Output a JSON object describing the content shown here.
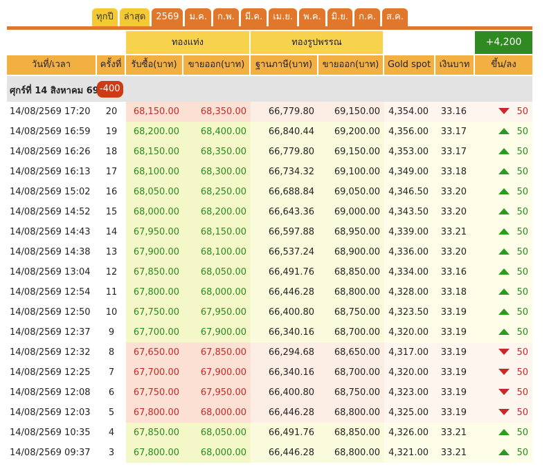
{
  "tabs": [
    {
      "label": "ทุกปี",
      "style": "yellow"
    },
    {
      "label": "ล่าสุด",
      "style": "yellow"
    },
    {
      "label": "2569",
      "style": "orange"
    },
    {
      "label": "ม.ค.",
      "style": "orange"
    },
    {
      "label": "ก.พ.",
      "style": "orange"
    },
    {
      "label": "มี.ค.",
      "style": "orange"
    },
    {
      "label": "เม.ย.",
      "style": "orange"
    },
    {
      "label": "พ.ค.",
      "style": "orange"
    },
    {
      "label": "มิ.ย.",
      "style": "orange"
    },
    {
      "label": "ก.ค.",
      "style": "orange"
    },
    {
      "label": "ส.ค.",
      "style": "orange"
    }
  ],
  "group_headers": {
    "gold_bar": "ทองแท่ง",
    "gold_jewelry": "ทองรูปพรรณ",
    "total_change": "+4,200"
  },
  "columns": {
    "datetime": "วันที่/เวลา",
    "round": "ครั้งที่",
    "bar_buy": "รับซื้อ(บาท)",
    "bar_sell": "ขายออก(บาท)",
    "jewelry_base": "ฐานภาษี(บาท)",
    "jewelry_sell": "ขายออก(บาท)",
    "gold_spot": "Gold spot",
    "thb": "เงินบาท",
    "change": "ขึ้น/ลง"
  },
  "day_header": {
    "label": "ศุกร์ที่ 14 สิงหาคม 69",
    "change": "-400"
  },
  "colors": {
    "orange": "#e0772a",
    "yellow": "#f5c935",
    "up": "#2a9b1e",
    "down": "#c8282a"
  },
  "rows": [
    {
      "time": "14/08/2569 17:20",
      "round": "20",
      "bar_buy": "68,150.00",
      "bar_sell": "68,350.00",
      "jew_base": "66,779.80",
      "jew_sell": "69,150.00",
      "spot": "4,354.00",
      "thb": "33.16",
      "dir": "down",
      "change": "50"
    },
    {
      "time": "14/08/2569 16:59",
      "round": "19",
      "bar_buy": "68,200.00",
      "bar_sell": "68,400.00",
      "jew_base": "66,840.44",
      "jew_sell": "69,200.00",
      "spot": "4,356.00",
      "thb": "33.17",
      "dir": "up",
      "change": "50"
    },
    {
      "time": "14/08/2569 16:26",
      "round": "18",
      "bar_buy": "68,150.00",
      "bar_sell": "68,350.00",
      "jew_base": "66,779.80",
      "jew_sell": "69,150.00",
      "spot": "4,353.00",
      "thb": "33.17",
      "dir": "up",
      "change": "50"
    },
    {
      "time": "14/08/2569 16:13",
      "round": "17",
      "bar_buy": "68,100.00",
      "bar_sell": "68,300.00",
      "jew_base": "66,734.32",
      "jew_sell": "69,100.00",
      "spot": "4,349.00",
      "thb": "33.18",
      "dir": "up",
      "change": "50"
    },
    {
      "time": "14/08/2569 15:02",
      "round": "16",
      "bar_buy": "68,050.00",
      "bar_sell": "68,250.00",
      "jew_base": "66,688.84",
      "jew_sell": "69,050.00",
      "spot": "4,346.50",
      "thb": "33.20",
      "dir": "up",
      "change": "50"
    },
    {
      "time": "14/08/2569 14:52",
      "round": "15",
      "bar_buy": "68,000.00",
      "bar_sell": "68,200.00",
      "jew_base": "66,643.36",
      "jew_sell": "69,000.00",
      "spot": "4,343.50",
      "thb": "33.20",
      "dir": "up",
      "change": "50"
    },
    {
      "time": "14/08/2569 14:43",
      "round": "14",
      "bar_buy": "67,950.00",
      "bar_sell": "68,150.00",
      "jew_base": "66,597.88",
      "jew_sell": "68,950.00",
      "spot": "4,339.00",
      "thb": "33.21",
      "dir": "up",
      "change": "50"
    },
    {
      "time": "14/08/2569 14:38",
      "round": "13",
      "bar_buy": "67,900.00",
      "bar_sell": "68,100.00",
      "jew_base": "66,537.24",
      "jew_sell": "68,900.00",
      "spot": "4,336.00",
      "thb": "33.20",
      "dir": "up",
      "change": "50"
    },
    {
      "time": "14/08/2569 13:04",
      "round": "12",
      "bar_buy": "67,850.00",
      "bar_sell": "68,050.00",
      "jew_base": "66,491.76",
      "jew_sell": "68,850.00",
      "spot": "4,334.00",
      "thb": "33.16",
      "dir": "up",
      "change": "50"
    },
    {
      "time": "14/08/2569 12:54",
      "round": "11",
      "bar_buy": "67,800.00",
      "bar_sell": "68,000.00",
      "jew_base": "66,446.28",
      "jew_sell": "68,800.00",
      "spot": "4,328.00",
      "thb": "33.18",
      "dir": "up",
      "change": "50"
    },
    {
      "time": "14/08/2569 12:50",
      "round": "10",
      "bar_buy": "67,750.00",
      "bar_sell": "67,950.00",
      "jew_base": "66,400.80",
      "jew_sell": "68,750.00",
      "spot": "4,323.50",
      "thb": "33.19",
      "dir": "up",
      "change": "50"
    },
    {
      "time": "14/08/2569 12:37",
      "round": "9",
      "bar_buy": "67,700.00",
      "bar_sell": "67,900.00",
      "jew_base": "66,340.16",
      "jew_sell": "68,700.00",
      "spot": "4,320.00",
      "thb": "33.19",
      "dir": "up",
      "change": "50"
    },
    {
      "time": "14/08/2569 12:32",
      "round": "8",
      "bar_buy": "67,650.00",
      "bar_sell": "67,850.00",
      "jew_base": "66,294.68",
      "jew_sell": "68,650.00",
      "spot": "4,317.00",
      "thb": "33.19",
      "dir": "down",
      "change": "50"
    },
    {
      "time": "14/08/2569 12:25",
      "round": "7",
      "bar_buy": "67,700.00",
      "bar_sell": "67,900.00",
      "jew_base": "66,340.16",
      "jew_sell": "68,700.00",
      "spot": "4,320.00",
      "thb": "33.19",
      "dir": "down",
      "change": "50"
    },
    {
      "time": "14/08/2569 12:08",
      "round": "6",
      "bar_buy": "67,750.00",
      "bar_sell": "67,950.00",
      "jew_base": "66,400.80",
      "jew_sell": "68,750.00",
      "spot": "4,323.00",
      "thb": "33.19",
      "dir": "down",
      "change": "50"
    },
    {
      "time": "14/08/2569 12:03",
      "round": "5",
      "bar_buy": "67,800.00",
      "bar_sell": "68,000.00",
      "jew_base": "66,446.28",
      "jew_sell": "68,800.00",
      "spot": "4,325.00",
      "thb": "33.19",
      "dir": "down",
      "change": "50"
    },
    {
      "time": "14/08/2569 10:35",
      "round": "4",
      "bar_buy": "67,850.00",
      "bar_sell": "68,050.00",
      "jew_base": "66,491.76",
      "jew_sell": "68,850.00",
      "spot": "4,326.00",
      "thb": "33.21",
      "dir": "up",
      "change": "50"
    },
    {
      "time": "14/08/2569 09:37",
      "round": "3",
      "bar_buy": "67,800.00",
      "bar_sell": "68,000.00",
      "jew_base": "66,446.28",
      "jew_sell": "68,800.00",
      "spot": "4,321.00",
      "thb": "33.21",
      "dir": "up",
      "change": "50"
    }
  ]
}
